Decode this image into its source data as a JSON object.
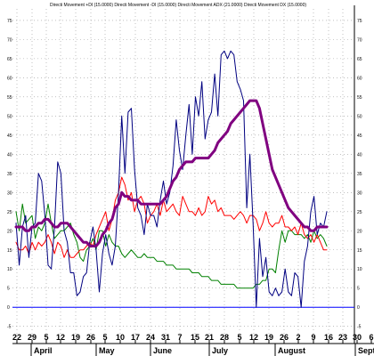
{
  "chart_data": {
    "type": "line",
    "title": "Directi Movement +DI (15.0000) Directi Movement -DI (15.0000) Directi Movement ADX (21.0000) Directi Movement DX (15.0000)",
    "ylim": [
      -6,
      78
    ],
    "y_ticks": [
      75,
      70,
      65,
      60,
      55,
      50,
      45,
      40,
      35,
      30,
      25,
      20,
      15,
      10,
      5,
      0,
      -5
    ],
    "reference_line": 0,
    "x_ticks": [
      "22",
      "29",
      "5",
      "12",
      "19",
      "26",
      "5",
      "10",
      "17",
      "24",
      "31",
      "7",
      "15",
      "21",
      "28",
      "5",
      "12",
      "19",
      "26",
      "2",
      "9",
      "16",
      "23",
      "30",
      "6"
    ],
    "months": [
      "April",
      "May",
      "June",
      "July",
      "August",
      "Septer"
    ],
    "colors": {
      "background": "#ffffff",
      "dx": "#000080",
      "plus_di": "#ff0000",
      "minus_di": "#008000",
      "adx": "#800080",
      "zero": "#0000ff"
    },
    "series": [
      {
        "key": "dx",
        "color": "#000080",
        "values": [
          22,
          11,
          21,
          24,
          13,
          21,
          22,
          35,
          33,
          24,
          11,
          10,
          21,
          38,
          35,
          20,
          17,
          9,
          9,
          3,
          4,
          8,
          9,
          17,
          21,
          15,
          4,
          14,
          19,
          14,
          11,
          16,
          30,
          50,
          35,
          51,
          52,
          36,
          26,
          24,
          19,
          27,
          24,
          24,
          21,
          28,
          33,
          27,
          30,
          37,
          49,
          41,
          36,
          45,
          53,
          40,
          55,
          50,
          59,
          44,
          49,
          51,
          61,
          50,
          66,
          67,
          65,
          67,
          66,
          59,
          57,
          54,
          26,
          40,
          22,
          0,
          18,
          8,
          13,
          4,
          3,
          5,
          3,
          4,
          10,
          4,
          3,
          9,
          8,
          0,
          12,
          16,
          25,
          29,
          19,
          22,
          21,
          25
        ]
      },
      {
        "key": "plus_di",
        "color": "#ff0000",
        "values": [
          17,
          15,
          15,
          16,
          14,
          17,
          15,
          17,
          16,
          17,
          19,
          17,
          14,
          17,
          16,
          13,
          15,
          13,
          13,
          14,
          15,
          15,
          16,
          17,
          16,
          19,
          21,
          23,
          25,
          20,
          23,
          28,
          30,
          34,
          32,
          28,
          30,
          25,
          28,
          29,
          27,
          22,
          24,
          25,
          27,
          24,
          28,
          25,
          26,
          27,
          25,
          24,
          29,
          27,
          25,
          25,
          24,
          26,
          24,
          25,
          29,
          27,
          28,
          25,
          26,
          24,
          24,
          24,
          23,
          24,
          25,
          24,
          22,
          24,
          24,
          23,
          20,
          22,
          25,
          22,
          21,
          22,
          22,
          24,
          21,
          21,
          20,
          21,
          19,
          22,
          19,
          18,
          19,
          17,
          19,
          17,
          15,
          15
        ]
      },
      {
        "key": "minus_di",
        "color": "#008000",
        "values": [
          25,
          20,
          27,
          22,
          23,
          24,
          18,
          21,
          20,
          22,
          27,
          22,
          18,
          19,
          20,
          20,
          21,
          22,
          19,
          17,
          13,
          12,
          15,
          16,
          18,
          15,
          20,
          20,
          16,
          19,
          17,
          16,
          16,
          14,
          13,
          14,
          15,
          14,
          13,
          13,
          14,
          13,
          13,
          13,
          12,
          12,
          12,
          11,
          11,
          11,
          10,
          10,
          10,
          10,
          10,
          9,
          9,
          9,
          8,
          8,
          8,
          7,
          7,
          7,
          6,
          6,
          6,
          6,
          6,
          5,
          5,
          5,
          5,
          5,
          5,
          6,
          6,
          7,
          7,
          10,
          10,
          9,
          15,
          20,
          17,
          20,
          20,
          19,
          19,
          19,
          18,
          19,
          17,
          20,
          18,
          19,
          18,
          16
        ]
      },
      {
        "key": "adx",
        "color": "#800080",
        "values": [
          21,
          21,
          21,
          20,
          20,
          21,
          21,
          22,
          22,
          23,
          23,
          22,
          21,
          21,
          22,
          22,
          22,
          21,
          20,
          19,
          18,
          17,
          17,
          16,
          16,
          16,
          17,
          19,
          20,
          22,
          23,
          26,
          27,
          30,
          29,
          29,
          28,
          28,
          28,
          27,
          27,
          27,
          27,
          27,
          27,
          27,
          28,
          29,
          31,
          33,
          34,
          36,
          37,
          38,
          38,
          38,
          39,
          39,
          39,
          39,
          39,
          40,
          41,
          43,
          44,
          45,
          46,
          48,
          49,
          50,
          51,
          52,
          53,
          54,
          54,
          54,
          52,
          48,
          44,
          40,
          36,
          34,
          32,
          30,
          28,
          26,
          25,
          24,
          23,
          22,
          21,
          21,
          20,
          20,
          21,
          21,
          21,
          21
        ]
      }
    ]
  }
}
